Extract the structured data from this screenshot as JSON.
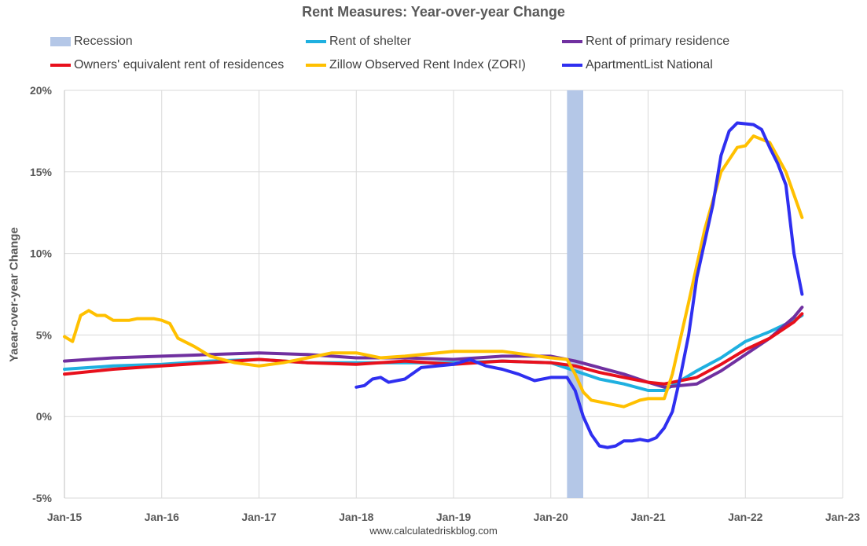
{
  "chart_data": {
    "type": "line",
    "title": "Rent Measures: Year-over-year Change",
    "ylabel": "Yaear-over-year Change",
    "xlabel": "",
    "source": "www.calculatedriskblog.com",
    "ylim": [
      -5,
      20
    ],
    "xlim": [
      "2015-01",
      "2023-01"
    ],
    "y_ticks": [
      "20%",
      "15%",
      "10%",
      "5%",
      "0%",
      "-5%"
    ],
    "x_ticks": [
      "Jan-15",
      "Jan-16",
      "Jan-17",
      "Jan-18",
      "Jan-19",
      "Jan-20",
      "Jan-21",
      "Jan-22",
      "Jan-23"
    ],
    "grid": true,
    "legend_position": "top",
    "recession": {
      "name": "Recession",
      "color": "#b4c7e7",
      "start": "2020-03",
      "end": "2020-04"
    },
    "series": [
      {
        "name": "Rent of shelter",
        "color": "#1fb0e0",
        "points": [
          [
            "2015-01",
            2.9
          ],
          [
            "2015-04",
            3.0
          ],
          [
            "2015-07",
            3.1
          ],
          [
            "2016-01",
            3.2
          ],
          [
            "2016-07",
            3.4
          ],
          [
            "2017-01",
            3.5
          ],
          [
            "2017-07",
            3.3
          ],
          [
            "2018-01",
            3.3
          ],
          [
            "2018-07",
            3.3
          ],
          [
            "2019-01",
            3.3
          ],
          [
            "2019-07",
            3.4
          ],
          [
            "2020-01",
            3.3
          ],
          [
            "2020-04",
            2.8
          ],
          [
            "2020-07",
            2.3
          ],
          [
            "2020-10",
            2.0
          ],
          [
            "2021-01",
            1.6
          ],
          [
            "2021-03",
            1.6
          ],
          [
            "2021-07",
            2.8
          ],
          [
            "2021-10",
            3.6
          ],
          [
            "2022-01",
            4.6
          ],
          [
            "2022-04",
            5.2
          ],
          [
            "2022-07",
            5.9
          ],
          [
            "2022-08",
            6.2
          ]
        ]
      },
      {
        "name": "Rent of primary residence",
        "color": "#7030a0",
        "points": [
          [
            "2015-01",
            3.4
          ],
          [
            "2015-07",
            3.6
          ],
          [
            "2016-01",
            3.7
          ],
          [
            "2016-07",
            3.8
          ],
          [
            "2017-01",
            3.9
          ],
          [
            "2017-07",
            3.8
          ],
          [
            "2018-01",
            3.6
          ],
          [
            "2018-07",
            3.6
          ],
          [
            "2019-01",
            3.5
          ],
          [
            "2019-07",
            3.7
          ],
          [
            "2020-01",
            3.7
          ],
          [
            "2020-04",
            3.4
          ],
          [
            "2020-07",
            3.0
          ],
          [
            "2020-10",
            2.6
          ],
          [
            "2021-01",
            2.1
          ],
          [
            "2021-03",
            1.8
          ],
          [
            "2021-07",
            2.0
          ],
          [
            "2021-10",
            2.8
          ],
          [
            "2022-01",
            3.8
          ],
          [
            "2022-04",
            4.8
          ],
          [
            "2022-07",
            6.1
          ],
          [
            "2022-08",
            6.7
          ]
        ]
      },
      {
        "name": "Owners' equivalent rent of residences",
        "color": "#e8101c",
        "points": [
          [
            "2015-01",
            2.6
          ],
          [
            "2015-07",
            2.9
          ],
          [
            "2016-01",
            3.1
          ],
          [
            "2016-07",
            3.3
          ],
          [
            "2017-01",
            3.5
          ],
          [
            "2017-07",
            3.3
          ],
          [
            "2018-01",
            3.2
          ],
          [
            "2018-07",
            3.4
          ],
          [
            "2019-01",
            3.2
          ],
          [
            "2019-07",
            3.4
          ],
          [
            "2020-01",
            3.3
          ],
          [
            "2020-04",
            3.1
          ],
          [
            "2020-07",
            2.7
          ],
          [
            "2020-10",
            2.4
          ],
          [
            "2021-01",
            2.1
          ],
          [
            "2021-03",
            2.0
          ],
          [
            "2021-07",
            2.4
          ],
          [
            "2021-10",
            3.2
          ],
          [
            "2022-01",
            4.1
          ],
          [
            "2022-04",
            4.8
          ],
          [
            "2022-07",
            5.8
          ],
          [
            "2022-08",
            6.3
          ]
        ]
      },
      {
        "name": "Zillow Observed Rent Index (ZORI)",
        "color": "#ffc000",
        "points": [
          [
            "2015-01",
            4.9
          ],
          [
            "2015-02",
            4.6
          ],
          [
            "2015-03",
            6.2
          ],
          [
            "2015-04",
            6.5
          ],
          [
            "2015-05",
            6.2
          ],
          [
            "2015-06",
            6.2
          ],
          [
            "2015-07",
            5.9
          ],
          [
            "2015-09",
            5.9
          ],
          [
            "2015-10",
            6.0
          ],
          [
            "2015-12",
            6.0
          ],
          [
            "2016-01",
            5.9
          ],
          [
            "2016-02",
            5.7
          ],
          [
            "2016-03",
            4.8
          ],
          [
            "2016-05",
            4.3
          ],
          [
            "2016-07",
            3.7
          ],
          [
            "2016-10",
            3.3
          ],
          [
            "2017-01",
            3.1
          ],
          [
            "2017-04",
            3.3
          ],
          [
            "2017-07",
            3.6
          ],
          [
            "2017-10",
            3.9
          ],
          [
            "2018-01",
            3.9
          ],
          [
            "2018-04",
            3.6
          ],
          [
            "2018-07",
            3.7
          ],
          [
            "2019-01",
            4.0
          ],
          [
            "2019-07",
            4.0
          ],
          [
            "2020-01",
            3.6
          ],
          [
            "2020-03",
            3.5
          ],
          [
            "2020-04",
            2.6
          ],
          [
            "2020-05",
            1.5
          ],
          [
            "2020-06",
            1.0
          ],
          [
            "2020-08",
            0.8
          ],
          [
            "2020-10",
            0.6
          ],
          [
            "2020-12",
            1.0
          ],
          [
            "2021-01",
            1.1
          ],
          [
            "2021-03",
            1.1
          ],
          [
            "2021-04",
            2.6
          ],
          [
            "2021-06",
            7.0
          ],
          [
            "2021-08",
            11.5
          ],
          [
            "2021-10",
            15.0
          ],
          [
            "2021-12",
            16.5
          ],
          [
            "2022-01",
            16.6
          ],
          [
            "2022-02",
            17.2
          ],
          [
            "2022-03",
            17.0
          ],
          [
            "2022-04",
            16.8
          ],
          [
            "2022-06",
            15.0
          ],
          [
            "2022-08",
            12.2
          ]
        ]
      },
      {
        "name": "ApartmentList National",
        "color": "#2f2ff0",
        "points": [
          [
            "2018-01",
            1.8
          ],
          [
            "2018-02",
            1.9
          ],
          [
            "2018-03",
            2.3
          ],
          [
            "2018-04",
            2.4
          ],
          [
            "2018-05",
            2.1
          ],
          [
            "2018-07",
            2.3
          ],
          [
            "2018-09",
            3.0
          ],
          [
            "2018-11",
            3.1
          ],
          [
            "2019-01",
            3.2
          ],
          [
            "2019-03",
            3.5
          ],
          [
            "2019-05",
            3.1
          ],
          [
            "2019-07",
            2.9
          ],
          [
            "2019-09",
            2.6
          ],
          [
            "2019-11",
            2.2
          ],
          [
            "2020-01",
            2.4
          ],
          [
            "2020-03",
            2.4
          ],
          [
            "2020-04",
            1.6
          ],
          [
            "2020-05",
            0.0
          ],
          [
            "2020-06",
            -1.1
          ],
          [
            "2020-07",
            -1.8
          ],
          [
            "2020-08",
            -1.9
          ],
          [
            "2020-09",
            -1.8
          ],
          [
            "2020-10",
            -1.5
          ],
          [
            "2020-11",
            -1.5
          ],
          [
            "2020-12",
            -1.4
          ],
          [
            "2021-01",
            -1.5
          ],
          [
            "2021-02",
            -1.3
          ],
          [
            "2021-03",
            -0.7
          ],
          [
            "2021-04",
            0.3
          ],
          [
            "2021-05",
            2.5
          ],
          [
            "2021-06",
            5.0
          ],
          [
            "2021-07",
            8.5
          ],
          [
            "2021-09",
            13.0
          ],
          [
            "2021-10",
            16.0
          ],
          [
            "2021-11",
            17.5
          ],
          [
            "2021-12",
            18.0
          ],
          [
            "2022-02",
            17.9
          ],
          [
            "2022-03",
            17.6
          ],
          [
            "2022-04",
            16.5
          ],
          [
            "2022-05",
            15.5
          ],
          [
            "2022-06",
            14.2
          ],
          [
            "2022-07",
            10.0
          ],
          [
            "2022-08",
            7.5
          ]
        ]
      }
    ]
  },
  "legend": {
    "recession": "Recession",
    "shelter": "Rent of shelter",
    "primary": "Rent of primary residence",
    "oer": "Owners' equivalent rent of residences",
    "zori": "Zillow Observed Rent Index (ZORI)",
    "apartmentlist": "ApartmentList National"
  }
}
